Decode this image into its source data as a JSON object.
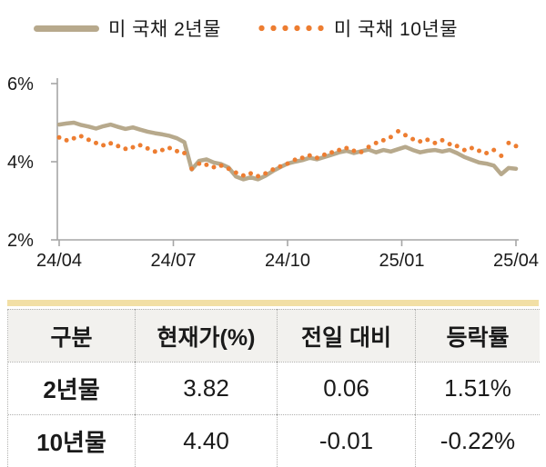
{
  "legend": {
    "items": [
      {
        "label": "미 국채 2년물",
        "marker": "line"
      },
      {
        "label": "미 국채 10년물",
        "marker": "dots"
      }
    ]
  },
  "colors": {
    "line_2y": "#b7a98c",
    "dots_10y": "#ed7d31",
    "axis": "#a6a6a6",
    "text": "#1a1a1a",
    "table_top_bar": "#f2dfa5",
    "header_bg": "#f2f1ee",
    "divider": "#b0b0ae"
  },
  "chart_data": {
    "type": "line",
    "title": "",
    "xlabel": "",
    "ylabel": "",
    "ylim": [
      2,
      6
    ],
    "grid": false,
    "legend_position": "top",
    "y_ticks": [
      {
        "label": "6%",
        "value": 6
      },
      {
        "label": "4%",
        "value": 4
      },
      {
        "label": "2%",
        "value": 2
      }
    ],
    "x_ticks": [
      {
        "label": "24/04",
        "f": 0
      },
      {
        "label": "24/07",
        "f": 0.25
      },
      {
        "label": "24/10",
        "f": 0.5
      },
      {
        "label": "25/01",
        "f": 0.75
      },
      {
        "label": "25/04",
        "f": 1
      }
    ],
    "series": [
      {
        "name": "미 국채 2년물",
        "style": "line",
        "values": [
          4.95,
          4.98,
          5.0,
          4.94,
          4.9,
          4.85,
          4.91,
          4.95,
          4.89,
          4.84,
          4.88,
          4.82,
          4.77,
          4.73,
          4.7,
          4.66,
          4.6,
          4.5,
          3.8,
          4.02,
          4.06,
          3.98,
          3.94,
          3.85,
          3.62,
          3.55,
          3.6,
          3.55,
          3.64,
          3.76,
          3.86,
          3.95,
          4.0,
          4.04,
          4.1,
          4.06,
          4.12,
          4.18,
          4.24,
          4.28,
          4.22,
          4.27,
          4.31,
          4.24,
          4.3,
          4.26,
          4.32,
          4.38,
          4.3,
          4.24,
          4.28,
          4.3,
          4.26,
          4.3,
          4.22,
          4.12,
          4.05,
          3.98,
          3.95,
          3.9,
          3.68,
          3.84,
          3.82
        ]
      },
      {
        "name": "미 국채 10년물",
        "style": "dots",
        "values": [
          4.62,
          4.55,
          4.6,
          4.65,
          4.56,
          4.48,
          4.42,
          4.47,
          4.4,
          4.33,
          4.37,
          4.42,
          4.34,
          4.26,
          4.3,
          4.35,
          4.27,
          4.22,
          3.82,
          3.95,
          3.92,
          3.86,
          3.9,
          3.82,
          3.72,
          3.65,
          3.7,
          3.63,
          3.7,
          3.8,
          3.88,
          3.95,
          4.05,
          4.1,
          4.16,
          4.1,
          4.18,
          4.24,
          4.3,
          4.35,
          4.28,
          4.25,
          4.38,
          4.48,
          4.55,
          4.63,
          4.78,
          4.68,
          4.58,
          4.52,
          4.56,
          4.48,
          4.55,
          4.45,
          4.4,
          4.3,
          4.35,
          4.28,
          4.22,
          4.3,
          4.15,
          4.48,
          4.4
        ]
      }
    ]
  },
  "table": {
    "headers": [
      "구분",
      "현재가(%)",
      "전일 대비",
      "등락률"
    ],
    "rows": [
      [
        "2년물",
        "3.82",
        "0.06",
        "1.51%"
      ],
      [
        "10년물",
        "4.40",
        "-0.01",
        "-0.22%"
      ]
    ]
  }
}
